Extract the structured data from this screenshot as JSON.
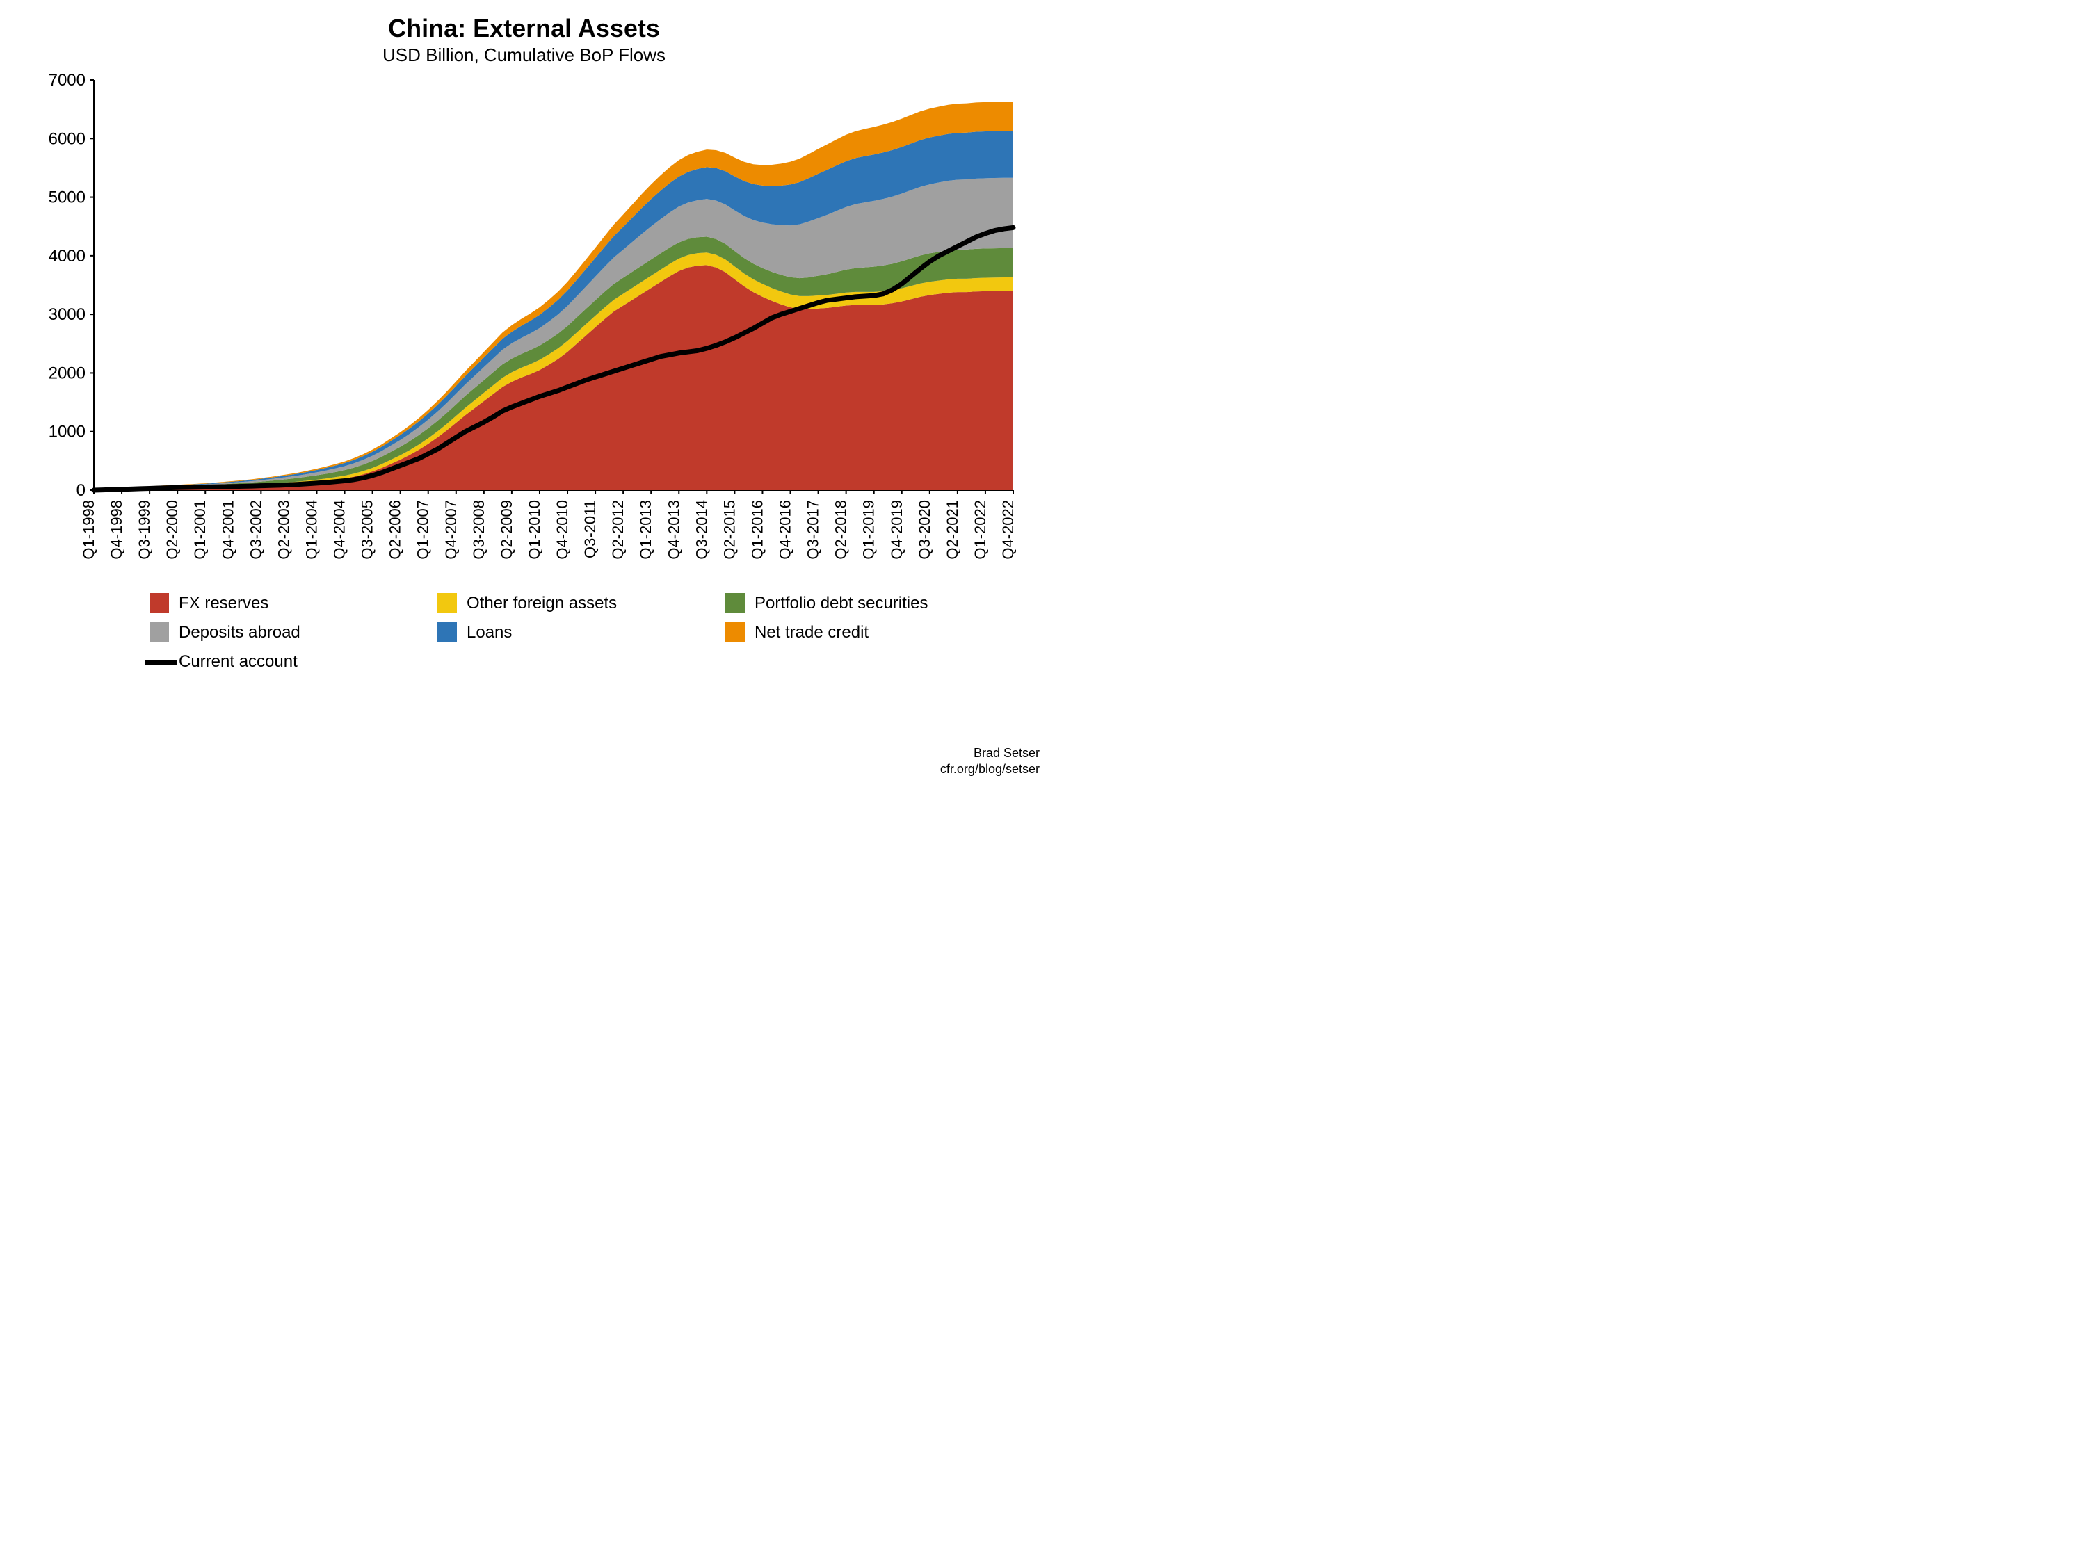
{
  "title": "China: External Assets",
  "subtitle": "USD Billion, Cumulative BoP Flows",
  "title_fontsize": 36,
  "subtitle_fontsize": 26,
  "attribution_line1": "Brad Setser",
  "attribution_line2": "cfr.org/blog/setser",
  "background_color": "#ffffff",
  "chart": {
    "type": "stacked_area_with_line",
    "ylim": [
      0,
      7000
    ],
    "ytick_step": 1000,
    "yticks": [
      0,
      1000,
      2000,
      3000,
      4000,
      5000,
      6000,
      7000
    ],
    "axis_fontsize": 24,
    "xlabel_fontsize": 22,
    "axis_color": "#000000",
    "xlabels": [
      "Q1-1998",
      "Q4-1998",
      "Q3-1999",
      "Q2-2000",
      "Q1-2001",
      "Q4-2001",
      "Q3-2002",
      "Q2-2003",
      "Q1-2004",
      "Q4-2004",
      "Q3-2005",
      "Q2-2006",
      "Q1-2007",
      "Q4-2007",
      "Q3-2008",
      "Q2-2009",
      "Q1-2010",
      "Q4-2010",
      "Q3-2011",
      "Q2-2012",
      "Q1-2013",
      "Q4-2013",
      "Q3-2014",
      "Q2-2015",
      "Q1-2016",
      "Q4-2016",
      "Q3-2017",
      "Q2-2018",
      "Q1-2019",
      "Q4-2019",
      "Q3-2020",
      "Q2-2021",
      "Q1-2022",
      "Q4-2022"
    ],
    "n_points": 100,
    "line_series": {
      "name": "Current account",
      "color": "#000000",
      "width": 7,
      "data": [
        0,
        5,
        10,
        15,
        20,
        25,
        30,
        35,
        40,
        45,
        48,
        51,
        54,
        57,
        60,
        63,
        66,
        70,
        75,
        80,
        85,
        92,
        100,
        110,
        120,
        130,
        145,
        160,
        180,
        210,
        250,
        300,
        360,
        420,
        480,
        540,
        620,
        700,
        800,
        900,
        1000,
        1080,
        1160,
        1250,
        1350,
        1420,
        1480,
        1540,
        1600,
        1650,
        1700,
        1760,
        1820,
        1880,
        1930,
        1980,
        2030,
        2080,
        2130,
        2180,
        2230,
        2280,
        2310,
        2340,
        2360,
        2380,
        2420,
        2470,
        2530,
        2600,
        2680,
        2760,
        2850,
        2940,
        3000,
        3050,
        3100,
        3150,
        3200,
        3240,
        3260,
        3280,
        3300,
        3310,
        3320,
        3350,
        3420,
        3520,
        3650,
        3780,
        3900,
        4000,
        4080,
        4160,
        4240,
        4320,
        4380,
        4430,
        4460,
        4480
      ]
    },
    "stack_order": [
      "fx_reserves",
      "other_foreign_assets",
      "portfolio_debt",
      "deposits_abroad",
      "loans",
      "net_trade_credit"
    ],
    "series": {
      "fx_reserves": {
        "label": "FX reserves",
        "color": "#c03a2b",
        "data": [
          0,
          5,
          10,
          15,
          20,
          25,
          28,
          31,
          34,
          37,
          40,
          43,
          46,
          50,
          55,
          60,
          65,
          70,
          78,
          86,
          95,
          105,
          115,
          128,
          142,
          158,
          178,
          200,
          230,
          270,
          320,
          380,
          450,
          520,
          600,
          690,
          790,
          900,
          1020,
          1150,
          1280,
          1400,
          1520,
          1640,
          1760,
          1850,
          1920,
          1980,
          2050,
          2140,
          2240,
          2360,
          2500,
          2640,
          2780,
          2920,
          3050,
          3150,
          3250,
          3350,
          3450,
          3550,
          3650,
          3740,
          3800,
          3830,
          3840,
          3800,
          3720,
          3600,
          3480,
          3380,
          3300,
          3230,
          3170,
          3120,
          3090,
          3090,
          3100,
          3110,
          3130,
          3150,
          3160,
          3160,
          3160,
          3170,
          3190,
          3220,
          3260,
          3300,
          3330,
          3350,
          3370,
          3380,
          3380,
          3390,
          3395,
          3398,
          3400,
          3400
        ]
      },
      "other_foreign_assets": {
        "label": "Other foreign assets",
        "color": "#f2c80f",
        "data": [
          0,
          2,
          4,
          6,
          8,
          9,
          10,
          11,
          12,
          13,
          14,
          15,
          16,
          17,
          18,
          19,
          20,
          22,
          24,
          26,
          28,
          30,
          32,
          35,
          38,
          41,
          44,
          48,
          52,
          56,
          60,
          65,
          70,
          76,
          82,
          88,
          95,
          102,
          110,
          118,
          126,
          134,
          142,
          150,
          158,
          162,
          166,
          170,
          174,
          178,
          182,
          186,
          190,
          194,
          196,
          198,
          200,
          202,
          204,
          206,
          208,
          210,
          211,
          212,
          213,
          214,
          215,
          216,
          217,
          218,
          218,
          219,
          219,
          220,
          220,
          220,
          221,
          221,
          222,
          222,
          222,
          222,
          223,
          223,
          223,
          224,
          224,
          225,
          225,
          226,
          226,
          227,
          227,
          228,
          228,
          229,
          229,
          230,
          230,
          230
        ]
      },
      "portfolio_debt": {
        "label": "Portfolio debt securities",
        "color": "#5f8b3b",
        "data": [
          0,
          2,
          4,
          6,
          8,
          10,
          12,
          14,
          16,
          18,
          20,
          22,
          24,
          27,
          30,
          33,
          36,
          40,
          44,
          48,
          52,
          57,
          62,
          68,
          74,
          80,
          87,
          94,
          102,
          110,
          118,
          126,
          135,
          144,
          153,
          162,
          171,
          180,
          188,
          196,
          204,
          210,
          216,
          222,
          228,
          232,
          236,
          240,
          244,
          248,
          252,
          256,
          260,
          263,
          266,
          268,
          270,
          272,
          274,
          276,
          278,
          278,
          278,
          276,
          274,
          272,
          270,
          268,
          266,
          264,
          264,
          266,
          270,
          276,
          284,
          294,
          306,
          320,
          336,
          354,
          372,
          390,
          405,
          418,
          430,
          440,
          450,
          460,
          470,
          478,
          485,
          490,
          494,
          497,
          499,
          500,
          500,
          500,
          500,
          500
        ]
      },
      "deposits_abroad": {
        "label": "Deposits abroad",
        "color": "#a0a0a0",
        "data": [
          0,
          1,
          2,
          3,
          4,
          5,
          6,
          7,
          8,
          9,
          10,
          11,
          12,
          14,
          16,
          18,
          20,
          22,
          25,
          28,
          32,
          36,
          40,
          45,
          50,
          56,
          62,
          68,
          75,
          82,
          90,
          98,
          107,
          116,
          126,
          136,
          147,
          158,
          170,
          182,
          195,
          208,
          222,
          236,
          250,
          262,
          274,
          286,
          298,
          312,
          326,
          342,
          360,
          380,
          402,
          426,
          452,
          480,
          510,
          540,
          565,
          585,
          600,
          612,
          622,
          632,
          644,
          658,
          674,
          694,
          718,
          746,
          778,
          812,
          848,
          884,
          920,
          954,
          986,
          1016,
          1044,
          1070,
          1092,
          1110,
          1124,
          1136,
          1146,
          1156,
          1164,
          1172,
          1178,
          1184,
          1188,
          1192,
          1195,
          1197,
          1198,
          1199,
          1200,
          1200
        ]
      },
      "loans": {
        "label": "Loans",
        "color": "#2e75b6",
        "data": [
          0,
          1,
          2,
          3,
          4,
          5,
          6,
          7,
          8,
          9,
          10,
          11,
          12,
          13,
          14,
          16,
          18,
          20,
          22,
          24,
          27,
          30,
          33,
          36,
          40,
          44,
          48,
          52,
          57,
          62,
          67,
          73,
          79,
          85,
          92,
          99,
          107,
          115,
          124,
          133,
          143,
          153,
          164,
          175,
          186,
          196,
          206,
          216,
          226,
          238,
          250,
          264,
          280,
          298,
          318,
          340,
          364,
          390,
          416,
          442,
          465,
          484,
          500,
          513,
          524,
          534,
          544,
          555,
          567,
          580,
          595,
          612,
          631,
          652,
          675,
          698,
          720,
          740,
          756,
          768,
          776,
          782,
          786,
          789,
          791,
          793,
          795,
          796,
          797,
          798,
          799,
          799,
          800,
          800,
          800,
          800,
          800,
          800,
          800,
          800
        ]
      },
      "net_trade_credit": {
        "label": "Net trade credit",
        "color": "#ed8b00",
        "data": [
          0,
          1,
          2,
          3,
          4,
          4,
          5,
          5,
          6,
          6,
          7,
          7,
          8,
          8,
          9,
          10,
          11,
          12,
          13,
          14,
          15,
          16,
          18,
          20,
          22,
          24,
          26,
          28,
          31,
          34,
          37,
          40,
          44,
          48,
          52,
          56,
          61,
          66,
          71,
          77,
          83,
          89,
          95,
          101,
          108,
          113,
          118,
          123,
          128,
          134,
          140,
          147,
          155,
          164,
          174,
          185,
          197,
          210,
          224,
          239,
          252,
          263,
          272,
          280,
          287,
          293,
          299,
          305,
          312,
          320,
          329,
          339,
          350,
          362,
          375,
          388,
          401,
          413,
          424,
          434,
          443,
          451,
          458,
          464,
          469,
          474,
          479,
          483,
          487,
          490,
          493,
          495,
          497,
          498,
          499,
          500,
          500,
          500,
          500,
          500
        ]
      }
    },
    "legend": {
      "fontsize": 24,
      "swatch_size": 28,
      "line_swatch_thickness": 7,
      "columns": 3,
      "items": [
        {
          "key": "fx_reserves",
          "type": "fill"
        },
        {
          "key": "other_foreign_assets",
          "type": "fill"
        },
        {
          "key": "portfolio_debt",
          "type": "fill"
        },
        {
          "key": "deposits_abroad",
          "type": "fill"
        },
        {
          "key": "loans",
          "type": "fill"
        },
        {
          "key": "net_trade_credit",
          "type": "fill"
        },
        {
          "key": "current_account",
          "type": "line"
        }
      ]
    }
  }
}
